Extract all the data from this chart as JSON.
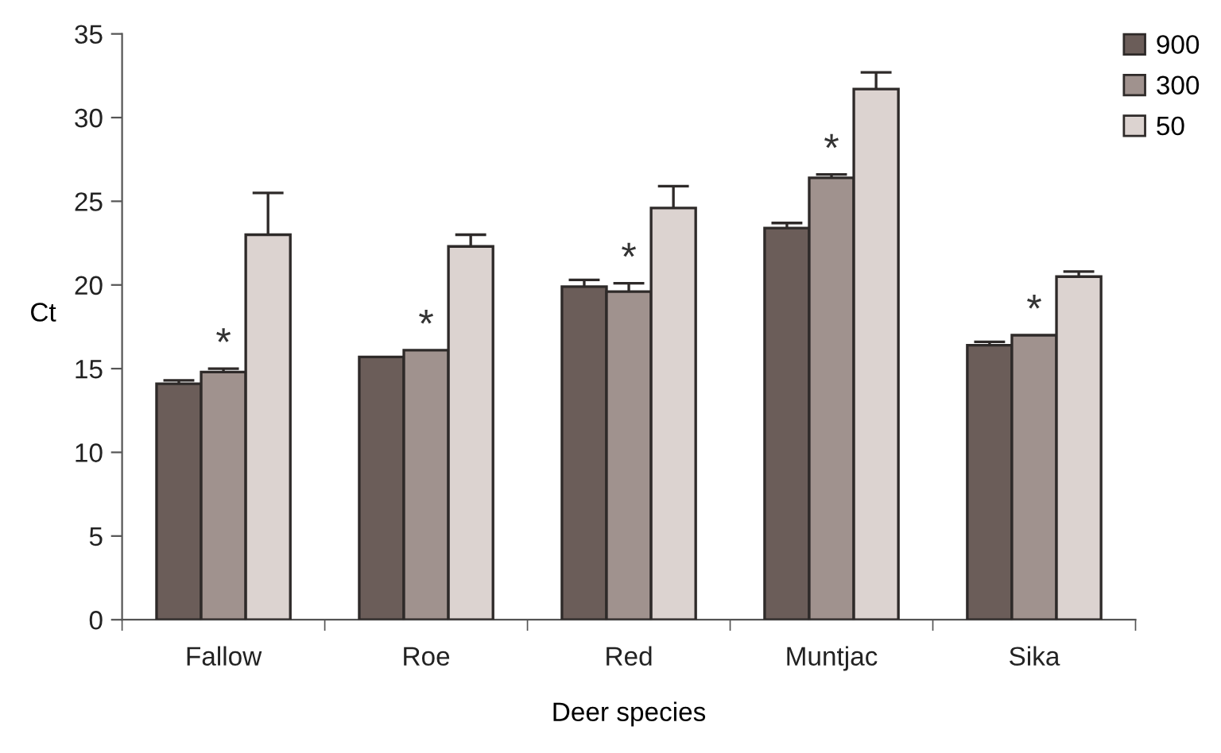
{
  "chart_data": {
    "type": "bar",
    "xlabel": "Deer species",
    "ylabel": "Ct",
    "categories": [
      "Fallow",
      "Roe",
      "Red",
      "Muntjac",
      "Sika"
    ],
    "series": [
      {
        "name": "900",
        "color": "#6b5d59",
        "values": [
          14.1,
          15.7,
          19.9,
          23.4,
          16.4
        ],
        "errors": [
          0.2,
          null,
          0.4,
          0.3,
          0.2
        ]
      },
      {
        "name": "300",
        "color": "#a0928e",
        "values": [
          14.8,
          16.1,
          19.6,
          26.4,
          17.0
        ],
        "errors": [
          0.2,
          null,
          0.5,
          0.2,
          null
        ]
      },
      {
        "name": "50",
        "color": "#dcd3d0",
        "values": [
          23.0,
          22.3,
          24.6,
          31.7,
          20.5
        ],
        "errors": [
          2.5,
          0.7,
          1.3,
          1.0,
          0.3
        ]
      }
    ],
    "ylim": [
      0,
      35
    ],
    "yticks": [
      0,
      5,
      10,
      15,
      20,
      25,
      30,
      35
    ],
    "grid": false,
    "legend": "top right",
    "annotations": [
      "*",
      "*",
      "*",
      "*",
      "*"
    ]
  }
}
